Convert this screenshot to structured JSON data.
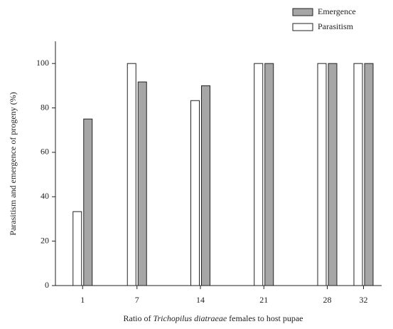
{
  "chart_data": {
    "type": "bar",
    "xlabel": [
      "Ratio of ",
      "Trichopilus diatraeae",
      " females to host pupae"
    ],
    "ylabel": "Parasitism and emergence of progeny (%)",
    "x": [
      1,
      7,
      14,
      21,
      28,
      32
    ],
    "xlim": [
      -2,
      34
    ],
    "xticks": [
      1,
      7,
      14,
      21,
      28,
      32
    ],
    "ylim": [
      0,
      110
    ],
    "yticks": [
      0,
      20,
      40,
      60,
      80,
      100
    ],
    "series": [
      {
        "name": "Parasitism",
        "color": "#ffffff",
        "values": [
          33.3,
          100,
          83.3,
          100,
          100,
          100
        ]
      },
      {
        "name": "Emergence",
        "color": "#a6a6a6",
        "values": [
          75,
          91.7,
          90,
          100,
          100,
          100
        ]
      }
    ],
    "legend": "top-right",
    "grid": false
  }
}
